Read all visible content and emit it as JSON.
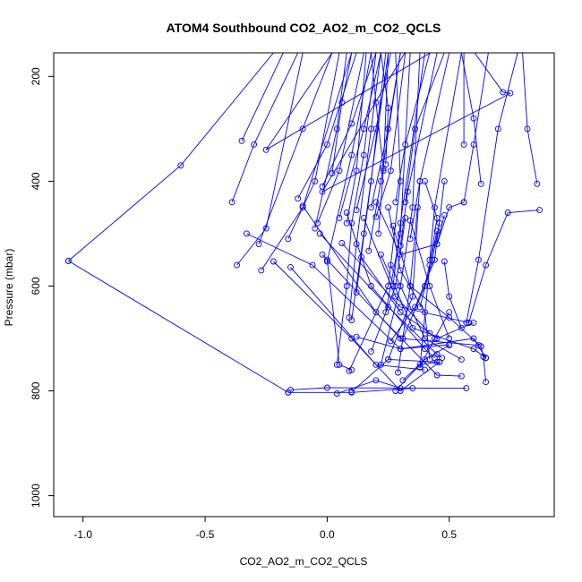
{
  "chart_data": {
    "type": "line",
    "title": "ATOM4 Southbound CO2_AO2_m_CO2_QCLS",
    "xlabel": "CO2_AO2_m_CO2_QCLS",
    "ylabel": "Pressure (mbar)",
    "xlim": [
      -1.12,
      0.93
    ],
    "ylim": [
      1040,
      155
    ],
    "y_reversed": true,
    "x_ticks": [
      -1.0,
      -0.5,
      0.0,
      0.5
    ],
    "x_tick_labels": [
      "-1.0",
      "-0.5",
      "0.0",
      "0.5"
    ],
    "y_ticks": [
      200,
      400,
      600,
      800,
      1000
    ],
    "y_tick_labels": [
      "200",
      "400",
      "600",
      "800",
      "1000"
    ],
    "grid": false,
    "legend": "none",
    "series_color": "#0000ff",
    "series": [
      {
        "points": [
          [
            0.02,
            155
          ],
          [
            -0.25,
            340
          ],
          [
            0.55,
            120
          ],
          [
            0.72,
            230
          ],
          [
            0.75,
            232
          ],
          [
            -0.02,
            420
          ],
          [
            0.35,
            130
          ]
        ]
      },
      {
        "points": [
          [
            -1.06,
            552
          ],
          [
            -0.6,
            370
          ],
          [
            -0.22,
            155
          ]
        ]
      },
      {
        "points": [
          [
            -1.06,
            552
          ],
          [
            -0.16,
            803
          ]
        ]
      },
      {
        "points": [
          [
            -0.35,
            323
          ],
          [
            -0.18,
            155
          ]
        ]
      },
      {
        "points": [
          [
            -0.37,
            560
          ],
          [
            -0.25,
            490
          ],
          [
            -0.1,
            155
          ]
        ]
      },
      {
        "points": [
          [
            -0.39,
            440
          ],
          [
            -0.3,
            330
          ],
          [
            -0.12,
            155
          ]
        ]
      },
      {
        "points": [
          [
            -0.28,
            520
          ],
          [
            -0.1,
            300
          ],
          [
            0.02,
            155
          ]
        ]
      },
      {
        "points": [
          [
            -0.33,
            500
          ],
          [
            -0.06,
            560
          ],
          [
            0.3,
            720
          ],
          [
            0.6,
            700
          ],
          [
            0.65,
            737
          ]
        ]
      },
      {
        "points": [
          [
            -0.27,
            570
          ],
          [
            -0.1,
            450
          ],
          [
            0.1,
            155
          ]
        ]
      },
      {
        "points": [
          [
            -0.22,
            553
          ],
          [
            0.1,
            700
          ],
          [
            0.3,
            800
          ],
          [
            0.46,
            745
          ]
        ]
      },
      {
        "points": [
          [
            -0.15,
            564
          ],
          [
            0.2,
            750
          ],
          [
            0.4,
            760
          ]
        ]
      },
      {
        "points": [
          [
            -0.16,
            510
          ],
          [
            -0.05,
            400
          ],
          [
            0.05,
            155
          ]
        ]
      },
      {
        "points": [
          [
            -0.12,
            433
          ],
          [
            0.0,
            330
          ],
          [
            0.12,
            155
          ]
        ]
      },
      {
        "points": [
          [
            -0.1,
            447
          ],
          [
            0.2,
            650
          ],
          [
            0.45,
            770
          ],
          [
            0.55,
            772
          ]
        ]
      },
      {
        "points": [
          [
            -0.15,
            798
          ],
          [
            0.0,
            794
          ],
          [
            0.57,
            795
          ]
        ]
      },
      {
        "points": [
          [
            -0.16,
            803
          ],
          [
            0.1,
            803
          ],
          [
            0.35,
            795
          ]
        ]
      },
      {
        "points": [
          [
            -0.04,
            480
          ],
          [
            0.05,
            380
          ],
          [
            0.15,
            155
          ]
        ]
      },
      {
        "points": [
          [
            -0.03,
            500
          ],
          [
            0.25,
            640
          ],
          [
            0.45,
            730
          ],
          [
            0.47,
            737
          ]
        ]
      },
      {
        "points": [
          [
            -0.05,
            490
          ],
          [
            0.04,
            300
          ],
          [
            0.08,
            155
          ]
        ]
      },
      {
        "points": [
          [
            -0.02,
            410
          ],
          [
            0.1,
            290
          ],
          [
            0.2,
            155
          ]
        ]
      },
      {
        "points": [
          [
            -0.02,
            540
          ],
          [
            0.3,
            700
          ],
          [
            0.62,
            713
          ]
        ]
      },
      {
        "points": [
          [
            0.0,
            553
          ],
          [
            0.1,
            350
          ],
          [
            0.18,
            155
          ]
        ]
      },
      {
        "points": [
          [
            0.0,
            550
          ],
          [
            0.05,
            750
          ],
          [
            0.1,
            760
          ]
        ]
      },
      {
        "points": [
          [
            0.02,
            385
          ],
          [
            0.06,
            250
          ],
          [
            0.1,
            155
          ]
        ]
      },
      {
        "points": [
          [
            0.04,
            750
          ],
          [
            0.08,
            600
          ],
          [
            0.1,
            480
          ],
          [
            0.15,
            350
          ],
          [
            0.2,
            155
          ]
        ]
      },
      {
        "points": [
          [
            0.04,
            805
          ],
          [
            0.2,
            780
          ],
          [
            0.3,
            795
          ]
        ]
      },
      {
        "points": [
          [
            0.05,
            470
          ],
          [
            0.15,
            300
          ],
          [
            0.22,
            155
          ]
        ]
      },
      {
        "points": [
          [
            0.06,
            518
          ],
          [
            0.3,
            640
          ],
          [
            0.58,
            670
          ]
        ]
      },
      {
        "points": [
          [
            0.08,
            480
          ],
          [
            0.12,
            380
          ],
          [
            0.16,
            155
          ]
        ]
      },
      {
        "points": [
          [
            0.08,
            460
          ],
          [
            0.18,
            600
          ],
          [
            0.4,
            720
          ],
          [
            0.44,
            737
          ]
        ]
      },
      {
        "points": [
          [
            0.09,
            660
          ],
          [
            0.12,
            520
          ],
          [
            0.18,
            300
          ],
          [
            0.22,
            155
          ]
        ]
      },
      {
        "points": [
          [
            0.1,
            665
          ],
          [
            0.15,
            500
          ],
          [
            0.25,
            155
          ]
        ]
      },
      {
        "points": [
          [
            0.1,
            802
          ],
          [
            0.25,
            740
          ],
          [
            0.45,
            745
          ]
        ]
      },
      {
        "points": [
          [
            0.09,
            762
          ],
          [
            0.25,
            600
          ],
          [
            0.3,
            400
          ],
          [
            0.28,
            155
          ]
        ]
      },
      {
        "points": [
          [
            0.12,
            455
          ],
          [
            0.2,
            300
          ],
          [
            0.26,
            155
          ]
        ]
      },
      {
        "points": [
          [
            0.12,
            612
          ],
          [
            0.18,
            400
          ],
          [
            0.24,
            155
          ]
        ]
      },
      {
        "points": [
          [
            0.12,
            697
          ],
          [
            0.3,
            720
          ],
          [
            0.5,
            712
          ]
        ]
      },
      {
        "points": [
          [
            0.14,
            545
          ],
          [
            0.3,
            650
          ],
          [
            0.45,
            700
          ],
          [
            0.6,
            670
          ]
        ]
      },
      {
        "points": [
          [
            0.15,
            470
          ],
          [
            0.28,
            620
          ],
          [
            0.42,
            690
          ]
        ]
      },
      {
        "points": [
          [
            0.17,
            533
          ],
          [
            0.22,
            400
          ],
          [
            0.3,
            155
          ]
        ]
      },
      {
        "points": [
          [
            0.18,
            450
          ],
          [
            0.25,
            300
          ],
          [
            0.3,
            155
          ]
        ]
      },
      {
        "points": [
          [
            0.18,
            725
          ],
          [
            0.28,
            600
          ],
          [
            0.32,
            470
          ]
        ]
      },
      {
        "points": [
          [
            0.2,
            468
          ],
          [
            0.26,
            380
          ],
          [
            0.32,
            155
          ]
        ]
      },
      {
        "points": [
          [
            0.2,
            440
          ],
          [
            0.3,
            540
          ],
          [
            0.45,
            520
          ],
          [
            0.48,
            465
          ]
        ]
      },
      {
        "points": [
          [
            0.21,
            500
          ],
          [
            0.23,
            380
          ],
          [
            0.25,
            155
          ]
        ]
      },
      {
        "points": [
          [
            0.22,
            540
          ],
          [
            0.35,
            680
          ],
          [
            0.6,
            720
          ],
          [
            0.65,
            737
          ]
        ]
      },
      {
        "points": [
          [
            0.22,
            750
          ],
          [
            0.3,
            600
          ],
          [
            0.35,
            450
          ],
          [
            0.38,
            155
          ]
        ]
      },
      {
        "points": [
          [
            0.23,
            375
          ],
          [
            0.2,
            250
          ],
          [
            0.18,
            155
          ]
        ]
      },
      {
        "points": [
          [
            0.24,
            368
          ],
          [
            0.25,
            260
          ],
          [
            0.22,
            155
          ]
        ]
      },
      {
        "points": [
          [
            0.24,
            650
          ],
          [
            0.3,
            500
          ],
          [
            0.34,
            155
          ]
        ]
      },
      {
        "points": [
          [
            0.25,
            740
          ],
          [
            0.35,
            620
          ],
          [
            0.38,
            400
          ]
        ]
      },
      {
        "points": [
          [
            0.25,
            450
          ],
          [
            0.3,
            570
          ],
          [
            0.4,
            650
          ],
          [
            0.42,
            740
          ]
        ]
      },
      {
        "points": [
          [
            0.26,
            705
          ],
          [
            0.36,
            640
          ],
          [
            0.44,
            550
          ],
          [
            0.48,
            400
          ]
        ]
      },
      {
        "points": [
          [
            0.26,
            560
          ],
          [
            0.4,
            700
          ],
          [
            0.55,
            740
          ]
        ]
      },
      {
        "points": [
          [
            0.27,
            600
          ],
          [
            0.3,
            480
          ],
          [
            0.4,
            155
          ]
        ]
      },
      {
        "points": [
          [
            0.27,
            485
          ],
          [
            0.34,
            600
          ],
          [
            0.5,
            660
          ],
          [
            0.63,
            715
          ]
        ]
      },
      {
        "points": [
          [
            0.28,
            440
          ],
          [
            0.32,
            330
          ],
          [
            0.42,
            155
          ]
        ]
      },
      {
        "points": [
          [
            0.28,
            800
          ],
          [
            0.38,
            750
          ],
          [
            0.46,
            745
          ]
        ]
      },
      {
        "points": [
          [
            0.29,
            765
          ],
          [
            0.34,
            600
          ],
          [
            0.37,
            450
          ]
        ]
      },
      {
        "points": [
          [
            0.3,
            523
          ],
          [
            0.33,
            420
          ],
          [
            0.45,
            155
          ]
        ]
      },
      {
        "points": [
          [
            0.31,
            700
          ],
          [
            0.4,
            600
          ],
          [
            0.45,
            495
          ]
        ]
      },
      {
        "points": [
          [
            0.31,
            780
          ],
          [
            0.4,
            740
          ],
          [
            0.5,
            713
          ]
        ]
      },
      {
        "points": [
          [
            0.32,
            440
          ],
          [
            0.36,
            300
          ],
          [
            0.48,
            155
          ]
        ]
      },
      {
        "points": [
          [
            0.34,
            510
          ],
          [
            0.38,
            400
          ],
          [
            0.5,
            155
          ]
        ]
      },
      {
        "points": [
          [
            0.34,
            475
          ],
          [
            0.42,
            600
          ],
          [
            0.5,
            700
          ]
        ]
      },
      {
        "points": [
          [
            0.38,
            640
          ],
          [
            0.43,
            550
          ],
          [
            0.46,
            480
          ]
        ]
      },
      {
        "points": [
          [
            0.38,
            755
          ],
          [
            0.44,
            700
          ],
          [
            0.5,
            650
          ]
        ]
      },
      {
        "points": [
          [
            0.4,
            400
          ],
          [
            0.45,
            470
          ],
          [
            0.42,
            560
          ],
          [
            0.38,
            755
          ]
        ]
      },
      {
        "points": [
          [
            0.42,
            550
          ],
          [
            0.44,
            450
          ],
          [
            0.55,
            155
          ]
        ]
      },
      {
        "points": [
          [
            0.45,
            520
          ],
          [
            0.5,
            450
          ],
          [
            0.56,
            440
          ]
        ]
      },
      {
        "points": [
          [
            0.48,
            553
          ],
          [
            0.5,
            620
          ],
          [
            0.55,
            680
          ]
        ]
      },
      {
        "points": [
          [
            0.57,
            670
          ],
          [
            0.62,
            550
          ],
          [
            0.7,
            300
          ],
          [
            0.78,
            155
          ]
        ]
      },
      {
        "points": [
          [
            0.58,
            670
          ],
          [
            0.65,
            560
          ],
          [
            0.74,
            460
          ],
          [
            0.87,
            455
          ]
        ]
      },
      {
        "points": [
          [
            0.56,
            440
          ],
          [
            0.6,
            330
          ],
          [
            0.66,
            155
          ]
        ]
      },
      {
        "points": [
          [
            0.56,
            330
          ],
          [
            0.56,
            155
          ]
        ]
      },
      {
        "points": [
          [
            0.63,
            405
          ],
          [
            0.6,
            280
          ],
          [
            0.55,
            155
          ]
        ]
      },
      {
        "points": [
          [
            0.63,
            715
          ],
          [
            0.64,
            735
          ],
          [
            0.65,
            783
          ]
        ]
      },
      {
        "points": [
          [
            0.86,
            405
          ],
          [
            0.82,
            300
          ],
          [
            0.8,
            155
          ]
        ]
      }
    ]
  }
}
